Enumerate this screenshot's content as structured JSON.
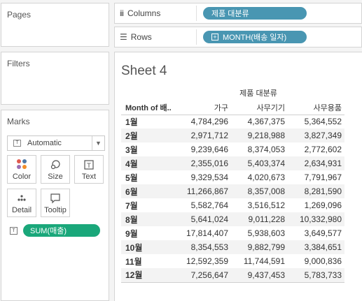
{
  "cards": {
    "pages_title": "Pages",
    "filters_title": "Filters",
    "marks_title": "Marks"
  },
  "marks": {
    "mark_type": "Automatic",
    "buttons": {
      "color": "Color",
      "size": "Size",
      "text": "Text",
      "detail": "Detail",
      "tooltip": "Tooltip"
    },
    "text_pill": "SUM(매출)",
    "colors": {
      "pill_green": "#1aa77a",
      "dot_red": "#e05a4f",
      "dot_blue": "#4e79a7",
      "dot_purple": "#9c6fb3",
      "dot_orange": "#f28e2b"
    }
  },
  "shelves": {
    "columns_label": "Columns",
    "columns_pill": "제품 대분류",
    "rows_label": "Rows",
    "rows_pill": "MONTH(배송 일자)",
    "pill_color": "#4996b2"
  },
  "sheet": {
    "title": "Sheet 4",
    "column_group_header": "제품 대분류",
    "row_header": "Month of 배..",
    "columns": [
      "가구",
      "사무기기",
      "사무용품"
    ],
    "rows": [
      {
        "month": "1월",
        "values": [
          "4,784,296",
          "4,367,375",
          "5,364,552"
        ]
      },
      {
        "month": "2월",
        "values": [
          "2,971,712",
          "9,218,988",
          "3,827,349"
        ]
      },
      {
        "month": "3월",
        "values": [
          "9,239,646",
          "8,374,053",
          "2,772,602"
        ]
      },
      {
        "month": "4월",
        "values": [
          "2,355,016",
          "5,403,374",
          "2,634,931"
        ]
      },
      {
        "month": "5월",
        "values": [
          "9,329,534",
          "4,020,673",
          "7,791,967"
        ]
      },
      {
        "month": "6월",
        "values": [
          "11,266,867",
          "8,357,008",
          "8,281,590"
        ]
      },
      {
        "month": "7월",
        "values": [
          "5,582,764",
          "3,516,512",
          "1,269,096"
        ]
      },
      {
        "month": "8월",
        "values": [
          "5,641,024",
          "9,011,228",
          "10,332,980"
        ]
      },
      {
        "month": "9월",
        "values": [
          "17,814,407",
          "5,938,603",
          "3,649,577"
        ]
      },
      {
        "month": "10월",
        "values": [
          "8,354,553",
          "9,882,799",
          "3,384,651"
        ]
      },
      {
        "month": "11월",
        "values": [
          "12,592,359",
          "11,744,591",
          "9,000,836"
        ]
      },
      {
        "month": "12월",
        "values": [
          "7,256,647",
          "9,437,453",
          "5,783,733"
        ]
      }
    ]
  }
}
